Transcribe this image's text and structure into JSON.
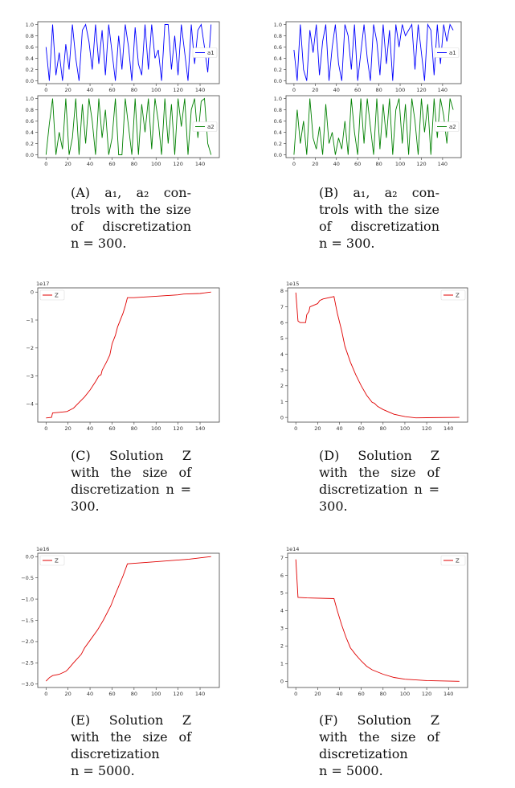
{
  "captions": {
    "a": [
      "(A)  a₁,  a₂  con-",
      "trols with the size",
      "of   discretization",
      "n = 300."
    ],
    "b": [
      "(B)  a₁,  a₂  con-",
      "trols with the size",
      "of   discretization",
      "n = 300."
    ],
    "c": [
      "(C)   Solution   Z",
      "with  the  size  of",
      "discretization n =",
      "300."
    ],
    "d": [
      "(D)   Solution   Z",
      "with  the  size  of",
      "discretization n =",
      "300."
    ],
    "e": [
      "(E)   Solution   Z",
      "with  the  size  of",
      "discretization",
      "n = 5000."
    ],
    "f": [
      "(F)   Solution   Z",
      "with  the  size  of",
      "discretization",
      "n = 5000."
    ]
  },
  "chart_data": [
    {
      "id": "a-top",
      "type": "line",
      "xlim": [
        -7.5,
        157.5
      ],
      "ylim": [
        -0.05,
        1.05
      ],
      "xticks": [
        0,
        20,
        40,
        60,
        80,
        100,
        120,
        140
      ],
      "yticks": [
        "0.0",
        "0.2",
        "0.4",
        "0.6",
        "0.8",
        "1.0"
      ],
      "legend": "right",
      "color": "#0000ff",
      "series": [
        {
          "name": "a1",
          "x_step": 3,
          "values": [
            0.6,
            0,
            1,
            0.1,
            0.5,
            0,
            0.65,
            0.2,
            1,
            0.4,
            0,
            0.9,
            1,
            0.7,
            0.2,
            1,
            0.3,
            0.9,
            0.1,
            1,
            0.5,
            0,
            0.8,
            0.2,
            1,
            0.6,
            0,
            0.95,
            0.3,
            0.1,
            1,
            0.2,
            1,
            0.4,
            0.55,
            0,
            1,
            1,
            0.2,
            0.8,
            0.1,
            1,
            0.5,
            0,
            1,
            0.3,
            0.9,
            1,
            0.6,
            0.15,
            1
          ]
        }
      ]
    },
    {
      "id": "a-bottom",
      "type": "line",
      "xlim": [
        -7.5,
        157.5
      ],
      "ylim": [
        -0.05,
        1.05
      ],
      "xticks": [
        0,
        20,
        40,
        60,
        80,
        100,
        120,
        140
      ],
      "yticks": [
        "0.0",
        "0.2",
        "0.4",
        "0.6",
        "0.8",
        "1.0"
      ],
      "legend": "right",
      "color": "#008000",
      "series": [
        {
          "name": "a2",
          "x_step": 3,
          "values": [
            0,
            0.55,
            1,
            0,
            0.4,
            0.1,
            1,
            0,
            0.3,
            1,
            0,
            0.9,
            0.2,
            1,
            0.6,
            0,
            1,
            0.3,
            0.8,
            0,
            0.3,
            1,
            0,
            0,
            1,
            0.5,
            0,
            1,
            0,
            0.9,
            0.4,
            1,
            0.1,
            1,
            0.6,
            0,
            1,
            0.2,
            0.9,
            0,
            1,
            0.5,
            1,
            0,
            0.8,
            1,
            0.3,
            0.95,
            1,
            0.2,
            0
          ]
        }
      ]
    },
    {
      "id": "b-top",
      "type": "line",
      "xlim": [
        -7.5,
        157.5
      ],
      "ylim": [
        -0.05,
        1.05
      ],
      "xticks": [
        0,
        20,
        40,
        60,
        80,
        100,
        120,
        140
      ],
      "yticks": [
        "0.0",
        "0.2",
        "0.4",
        "0.6",
        "0.8",
        "1.0"
      ],
      "legend": "right",
      "color": "#0000ff",
      "series": [
        {
          "name": "a1",
          "x_step": 3,
          "values": [
            0.55,
            0,
            1,
            0.2,
            0,
            0.9,
            0.5,
            1,
            0.1,
            0.7,
            1,
            0,
            0.6,
            1,
            0.3,
            0,
            1,
            0.8,
            0.2,
            1,
            0,
            0.5,
            1,
            0.4,
            0,
            1,
            0.7,
            0.1,
            1,
            0.3,
            0.9,
            0,
            1,
            0.6,
            1,
            0.8,
            0.9,
            1,
            0.2,
            1,
            0.5,
            0,
            1,
            0.9,
            0.1,
            1,
            0.3,
            1,
            0.7,
            1,
            0.9
          ]
        }
      ]
    },
    {
      "id": "b-bottom",
      "type": "line",
      "xlim": [
        -7.5,
        157.5
      ],
      "ylim": [
        -0.05,
        1.05
      ],
      "xticks": [
        0,
        20,
        40,
        60,
        80,
        100,
        120,
        140
      ],
      "yticks": [
        "0.0",
        "0.2",
        "0.4",
        "0.6",
        "0.8",
        "1.0"
      ],
      "legend": "right",
      "color": "#008000",
      "series": [
        {
          "name": "a2",
          "x_step": 3,
          "values": [
            0,
            0.8,
            0.2,
            0.6,
            0,
            1,
            0.3,
            0.1,
            0.5,
            0,
            0.9,
            0.2,
            0.4,
            0,
            0.3,
            0.1,
            0.6,
            0,
            1,
            0.4,
            0,
            1,
            0.2,
            1,
            0.5,
            0,
            1,
            0.1,
            0.9,
            0.3,
            1,
            0,
            0.8,
            1,
            0.2,
            0.9,
            0,
            1,
            0.6,
            0,
            1,
            0.4,
            0.9,
            0,
            1,
            0.3,
            1,
            0.7,
            0.2,
            1,
            0.8
          ]
        }
      ]
    },
    {
      "id": "c",
      "type": "line",
      "offset": "1e17",
      "xlim": [
        -7.5,
        157.5
      ],
      "ylim": [
        -4.65,
        0.15
      ],
      "xticks": [
        0,
        20,
        40,
        60,
        80,
        100,
        120,
        140
      ],
      "yticks": [
        0,
        -1,
        -2,
        -3,
        -4
      ],
      "legend": "top-left",
      "color": "#e00000",
      "series": [
        {
          "name": "Z",
          "x": [
            0,
            5,
            6,
            12,
            19,
            20,
            25,
            30,
            35,
            40,
            45,
            48,
            50,
            51,
            55,
            58,
            60,
            63,
            65,
            70,
            72,
            74,
            80,
            100,
            120,
            125,
            140,
            150
          ],
          "y": [
            -4.5,
            -4.48,
            -4.32,
            -4.3,
            -4.27,
            -4.25,
            -4.15,
            -3.95,
            -3.75,
            -3.5,
            -3.2,
            -3.0,
            -2.95,
            -2.8,
            -2.5,
            -2.25,
            -1.85,
            -1.55,
            -1.25,
            -0.75,
            -0.5,
            -0.2,
            -0.2,
            -0.15,
            -0.1,
            -0.07,
            -0.05,
            0
          ]
        }
      ]
    },
    {
      "id": "d",
      "type": "line",
      "offset": "1e15",
      "xlim": [
        -7.5,
        157.5
      ],
      "ylim": [
        -0.3,
        8.2
      ],
      "xticks": [
        0,
        20,
        40,
        60,
        80,
        100,
        120,
        140
      ],
      "yticks": [
        0,
        1,
        2,
        3,
        4,
        5,
        6,
        7,
        8
      ],
      "legend": "top-right",
      "color": "#e00000",
      "series": [
        {
          "name": "Z",
          "x": [
            0,
            2,
            4,
            9,
            10,
            12,
            13,
            20,
            22,
            25,
            35,
            38,
            42,
            45,
            50,
            55,
            60,
            65,
            70,
            72,
            75,
            80,
            90,
            100,
            110,
            120,
            150
          ],
          "y": [
            7.9,
            6.1,
            6.0,
            6.0,
            6.5,
            6.7,
            7.0,
            7.2,
            7.4,
            7.5,
            7.65,
            6.6,
            5.5,
            4.5,
            3.5,
            2.7,
            2.0,
            1.4,
            0.95,
            0.9,
            0.7,
            0.5,
            0.2,
            0.05,
            -0.03,
            -0.02,
            0
          ]
        }
      ]
    },
    {
      "id": "e",
      "type": "line",
      "offset": "1e16",
      "xlim": [
        -7.5,
        157.5
      ],
      "ylim": [
        -3.08,
        0.08
      ],
      "xticks": [
        0,
        20,
        40,
        60,
        80,
        100,
        120,
        140
      ],
      "yticks": [
        "0.0",
        "-0.5",
        "-1.0",
        "-1.5",
        "-2.0",
        "-2.5",
        "-3.0"
      ],
      "legend": "top-left",
      "color": "#e00000",
      "series": [
        {
          "name": "Z",
          "x": [
            0,
            3,
            6,
            12,
            18,
            20,
            25,
            32,
            35,
            40,
            47,
            52,
            59,
            62,
            70,
            74,
            100,
            130,
            150
          ],
          "y": [
            -2.93,
            -2.85,
            -2.8,
            -2.77,
            -2.7,
            -2.65,
            -2.5,
            -2.3,
            -2.15,
            -1.97,
            -1.72,
            -1.5,
            -1.15,
            -0.95,
            -0.45,
            -0.17,
            -0.12,
            -0.06,
            0
          ]
        }
      ]
    },
    {
      "id": "f",
      "type": "line",
      "offset": "1e14",
      "xlim": [
        -7.5,
        157.5
      ],
      "ylim": [
        -0.35,
        7.25
      ],
      "xticks": [
        0,
        20,
        40,
        60,
        80,
        100,
        120,
        140
      ],
      "yticks": [
        0,
        1,
        2,
        3,
        4,
        5,
        6,
        7
      ],
      "legend": "top-right",
      "color": "#e00000",
      "series": [
        {
          "name": "Z",
          "x": [
            0,
            2,
            10,
            35,
            38,
            42,
            46,
            50,
            55,
            60,
            65,
            70,
            80,
            90,
            100,
            120,
            150
          ],
          "y": [
            6.9,
            4.75,
            4.72,
            4.68,
            4.0,
            3.2,
            2.5,
            1.9,
            1.5,
            1.15,
            0.85,
            0.65,
            0.4,
            0.22,
            0.12,
            0.04,
            0
          ]
        }
      ]
    }
  ]
}
